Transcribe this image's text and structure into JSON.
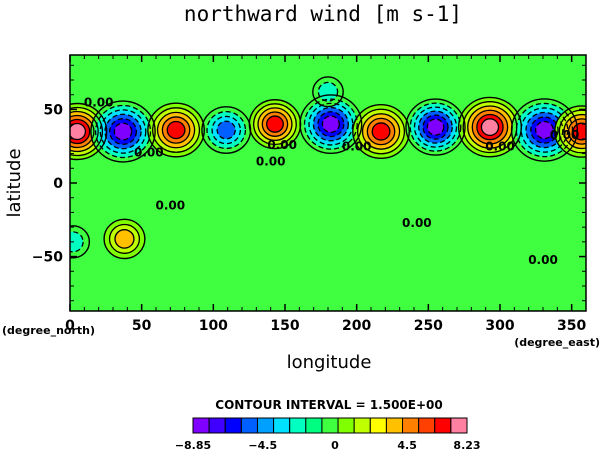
{
  "chart_data": {
    "type": "heatmap",
    "title": "northward wind [m s-1]",
    "xlabel": "longitude",
    "ylabel": "latitude",
    "x_unit": "(degree_east)",
    "y_unit": "(degree_north)",
    "xlim": [
      0,
      360
    ],
    "ylim": [
      -87,
      87
    ],
    "x_ticks": [
      "0",
      "50",
      "100",
      "150",
      "200",
      "250",
      "300",
      "350"
    ],
    "y_ticks": [
      "50",
      "0",
      "−50"
    ],
    "contour_interval_text": "CONTOUR INTERVAL = 1.500E+00",
    "contour_label": "0.00",
    "colorbar": {
      "min": -8.85,
      "max": 8.23,
      "tick_labels": [
        "−8.85",
        "−4.5",
        "0",
        "4.5",
        "8.23"
      ]
    },
    "wave_features": [
      {
        "lon": 5,
        "lat": 35,
        "value": 7.5
      },
      {
        "lon": 37,
        "lat": 35,
        "value": -8.5
      },
      {
        "lon": 74,
        "lat": 36,
        "value": 7.0
      },
      {
        "lon": 109,
        "lat": 36,
        "value": -5.5
      },
      {
        "lon": 143,
        "lat": 40,
        "value": 6.0
      },
      {
        "lon": 182,
        "lat": 40,
        "value": -8.0
      },
      {
        "lon": 217,
        "lat": 35,
        "value": 7.0
      },
      {
        "lon": 255,
        "lat": 38,
        "value": -7.5
      },
      {
        "lon": 293,
        "lat": 38,
        "value": 8.2
      },
      {
        "lon": 331,
        "lat": 36,
        "value": -8.8
      },
      {
        "lon": 357,
        "lat": 35,
        "value": 6.5
      },
      {
        "lon": 38,
        "lat": -38,
        "value": 4.0
      },
      {
        "lon": 2,
        "lat": -40,
        "value": -2.5
      },
      {
        "lon": 180,
        "lat": 62,
        "value": -2.0
      }
    ],
    "colors": [
      "#8000ff",
      "#4000ff",
      "#0000ff",
      "#0060ff",
      "#00a0ff",
      "#00e0ff",
      "#00ffc0",
      "#00ff80",
      "#40ff40",
      "#80ff00",
      "#c0ff00",
      "#ffff00",
      "#ffc000",
      "#ff8000",
      "#ff4000",
      "#ff0000",
      "#ff80a0"
    ]
  }
}
